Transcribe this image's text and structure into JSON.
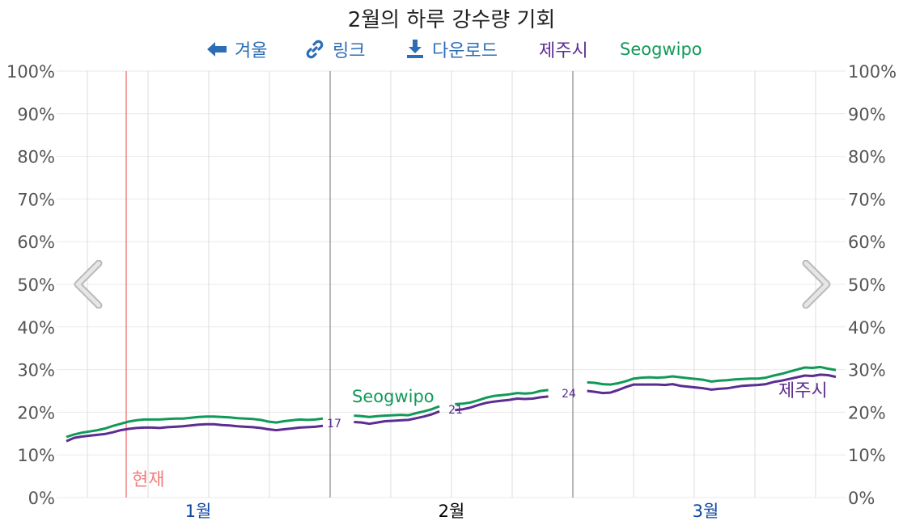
{
  "title": "2월의 하루 강수량 기회",
  "toolbar": {
    "back_label": "겨울",
    "link_label": "링크",
    "download_label": "다운로드",
    "legend_jeju": "제주시",
    "legend_seogwipo": "Seogwipo"
  },
  "now_label": "현재",
  "month_labels": [
    "1월",
    "2월",
    "3월"
  ],
  "yticks": [
    "0%",
    "10%",
    "20%",
    "30%",
    "40%",
    "50%",
    "60%",
    "70%",
    "80%",
    "90%",
    "100%"
  ],
  "colors": {
    "jeju": "#5b2d91",
    "seogwipo": "#119959",
    "now_line": "#f08080",
    "month_blue": "#0d47a1",
    "month_current": "#000000",
    "toolbar_blue": "#2d6db5"
  },
  "icons": {
    "back": "arrow-left-icon",
    "link": "link-icon",
    "download": "download-icon",
    "prev": "chevron-left-icon",
    "next": "chevron-right-icon"
  },
  "chart_data": {
    "type": "line",
    "title": "2월의 하루 강수량 기회",
    "x_axis": {
      "start": "1월",
      "end": "3월",
      "month_labels": [
        "1월",
        "2월",
        "3월"
      ],
      "current_month": "2월"
    },
    "y_axis": {
      "range": [
        0,
        100
      ],
      "unit": "%",
      "ticks": [
        0,
        10,
        20,
        30,
        40,
        50,
        60,
        70,
        80,
        90,
        100
      ],
      "right_axis_mirror": true
    },
    "grid": true,
    "legend_position": "top",
    "series": [
      {
        "name": "Seogwipo",
        "label_on_chart": "Seogwipo",
        "values": [
          14.2,
          14.8,
          15.2,
          15.5,
          15.8,
          16.2,
          16.8,
          17.3,
          17.8,
          18.1,
          18.3,
          18.3,
          18.3,
          18.4,
          18.5,
          18.5,
          18.7,
          18.9,
          19.0,
          19.0,
          18.9,
          18.8,
          18.6,
          18.5,
          18.4,
          18.2,
          17.8,
          17.6,
          17.9,
          18.1,
          18.3,
          18.2,
          18.3,
          18.5,
          18.6,
          18.8,
          19.0,
          19.2,
          19.1,
          18.9,
          19.1,
          19.2,
          19.3,
          19.4,
          19.3,
          19.8,
          20.2,
          20.7,
          21.4,
          21.8,
          21.9,
          22.0,
          22.3,
          22.8,
          23.4,
          23.8,
          24.0,
          24.2,
          24.5,
          24.4,
          24.5,
          25.0,
          25.2,
          25.5,
          25.8,
          26.5,
          26.9,
          27.0,
          26.9,
          26.6,
          26.5,
          26.8,
          27.3,
          27.9,
          28.1,
          28.2,
          28.1,
          28.2,
          28.4,
          28.2,
          28.0,
          27.8,
          27.6,
          27.2,
          27.4,
          27.5,
          27.7,
          27.8,
          27.9,
          27.9,
          28.1,
          28.6,
          29.0,
          29.5,
          30.0,
          30.5,
          30.4,
          30.6,
          30.2,
          29.9
        ]
      },
      {
        "name": "제주시",
        "label_on_chart": "제주시",
        "values": [
          13.2,
          14.0,
          14.3,
          14.5,
          14.7,
          14.9,
          15.3,
          15.8,
          16.1,
          16.3,
          16.4,
          16.4,
          16.3,
          16.5,
          16.6,
          16.7,
          16.9,
          17.1,
          17.2,
          17.2,
          17.0,
          16.9,
          16.7,
          16.6,
          16.5,
          16.3,
          16.0,
          15.8,
          16.0,
          16.2,
          16.4,
          16.5,
          16.6,
          16.8,
          17.0,
          17.3,
          17.5,
          17.7,
          17.6,
          17.3,
          17.6,
          17.9,
          18.0,
          18.1,
          18.2,
          18.6,
          19.0,
          19.5,
          20.2,
          20.4,
          20.5,
          20.7,
          21.1,
          21.7,
          22.2,
          22.5,
          22.7,
          22.9,
          23.2,
          23.1,
          23.2,
          23.5,
          23.7,
          23.9,
          24.1,
          24.6,
          24.9,
          25.0,
          24.8,
          24.5,
          24.6,
          25.2,
          25.9,
          26.5,
          26.5,
          26.5,
          26.5,
          26.4,
          26.6,
          26.2,
          26.0,
          25.8,
          25.6,
          25.3,
          25.5,
          25.6,
          25.9,
          26.2,
          26.3,
          26.4,
          26.6,
          27.1,
          27.4,
          27.8,
          28.2,
          28.6,
          28.5,
          28.8,
          28.7,
          28.3
        ]
      }
    ],
    "point_labels": [
      {
        "series": "제주시",
        "text": "17"
      },
      {
        "series": "제주시",
        "text": "21"
      },
      {
        "series": "제주시",
        "text": "24"
      }
    ],
    "now_marker": "현재"
  }
}
